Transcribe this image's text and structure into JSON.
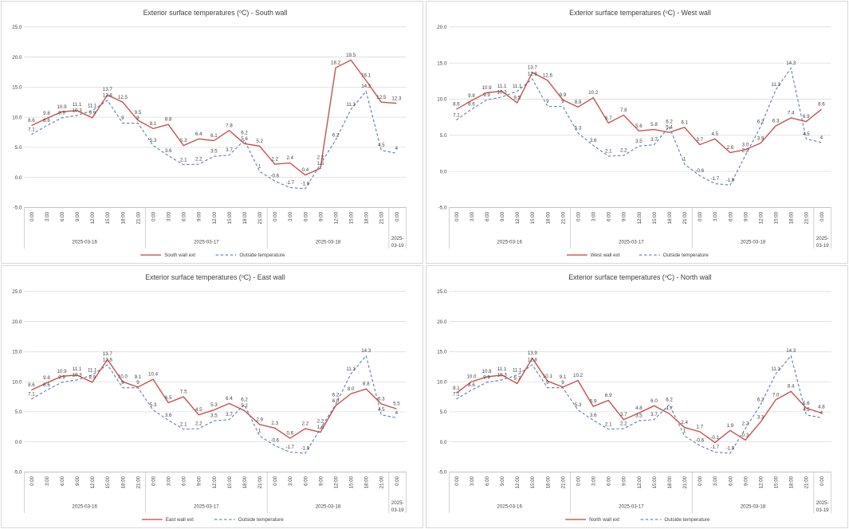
{
  "page": {
    "background": "#ffffff"
  },
  "styles": {
    "wall_color": "#C5524E",
    "outside_color": "#5A7DB9",
    "grid_color": "#DCDCDC",
    "axis_color": "#BFBFBF",
    "separator_color": "#BFBFBF",
    "label_color": "#3F3F3F",
    "title_color": "#404040",
    "panel_border": "#D9D9D9"
  },
  "chart_data": {
    "type": "line",
    "title_pre": "Exterior surface temperatures (",
    "title_sup": "o",
    "legend_outside_label": "Outside temperature",
    "x_axis": {
      "times": [
        "0:00",
        "3:00",
        "6:00",
        "9:00",
        "12:00",
        "15:00",
        "18:00",
        "21:00"
      ],
      "day_groups": [
        {
          "date": "2025-03-16",
          "count": 8
        },
        {
          "date": "2025-03-17",
          "count": 8
        },
        {
          "date": "2025-03-18",
          "count": 8
        },
        {
          "date": "2025-03-19",
          "count": 1,
          "wrap": [
            "2025-",
            "03-19"
          ]
        }
      ]
    },
    "outside_series": {
      "name": "Outside temperature",
      "labels": [
        "7.1",
        "8.6",
        "9.9",
        "10.3",
        "11.1",
        "12.8",
        "9",
        "9",
        "5.3",
        "3.6",
        "2.1",
        "2.2",
        "3.5",
        "3.7",
        "6.2",
        "1",
        "-0.6",
        "-1.7",
        "-1.9",
        "2.2",
        "6.2",
        "11.3",
        "14.3",
        "4.5",
        "4"
      ]
    },
    "charts": [
      {
        "id": "south",
        "title_post": "C) - South wall",
        "series_name": "South wall ext",
        "y_max": 25,
        "y_min": -5,
        "y_ticks": [
          "25.0",
          "20.0",
          "15.0",
          "10.0",
          "5.0",
          "0.0",
          "-5.0"
        ],
        "labels": [
          "8.6",
          "9.8",
          "10.9",
          "11.1",
          "9.9",
          "13.7",
          "12.5",
          "9.5",
          "8.1",
          "8.8",
          "5.3",
          "6.4",
          "6.1",
          "7.8",
          "5.6",
          "5.2",
          "2.2",
          "2.4",
          "0.4",
          "1.5",
          "18.2",
          "19.5",
          "16.1",
          "12.5",
          "12.3"
        ]
      },
      {
        "id": "west",
        "title_post": "C) - West wall",
        "series_name": "West wall ext",
        "y_max": 20,
        "y_min": -5,
        "y_ticks": [
          "20.0",
          "15.0",
          "10.0",
          "5.0",
          "0.0",
          "-5.0"
        ],
        "labels": [
          "8.6",
          "9.8",
          "10.9",
          "11.1",
          "9.5",
          "13.7",
          "12.6",
          "9.9",
          "8.9",
          "10.2",
          "6.7",
          "7.8",
          "5.6",
          "5.8",
          "5.4",
          "6.1",
          "3.7",
          "4.5",
          "2.6",
          "3.0",
          "3.9",
          "6.3",
          "7.4",
          "6.9",
          "8.6"
        ]
      },
      {
        "id": "east",
        "title_post": "C) - East wall",
        "series_name": "East wall ext",
        "y_max": 25,
        "y_min": -5,
        "y_ticks": [
          "25.0",
          "20.0",
          "15.0",
          "10.0",
          "5.0",
          "0.0",
          "-5.0"
        ],
        "labels": [
          "8.6",
          "9.8",
          "10.9",
          "11.1",
          "9.9",
          "13.7",
          "10.0",
          "9.1",
          "10.4",
          "6.5",
          "7.5",
          "4.5",
          "5.3",
          "6.4",
          "5.2",
          "2.9",
          "2.3",
          "0.6",
          "2.2",
          "1.6",
          "6.0",
          "8.0",
          "8.8",
          "6.3",
          "5.5"
        ]
      },
      {
        "id": "north",
        "title_post": "C) - North wall",
        "series_name": "North wall ext",
        "y_max": 25,
        "y_min": -5,
        "y_ticks": [
          "25.0",
          "20.0",
          "15.0",
          "10.0",
          "5.0",
          "0.0",
          "-5.0"
        ],
        "labels": [
          "8.1",
          "10.0",
          "10.8",
          "11.1",
          "9.7",
          "13.9",
          "10.1",
          "9.1",
          "10.2",
          "5.9",
          "6.9",
          "3.7",
          "4.8",
          "6.0",
          "4.7",
          "2.4",
          "1.7",
          "-0.1",
          "1.9",
          "0.3",
          "3.3",
          "7.0",
          "8.4",
          "5.6",
          "4.8"
        ]
      }
    ]
  }
}
